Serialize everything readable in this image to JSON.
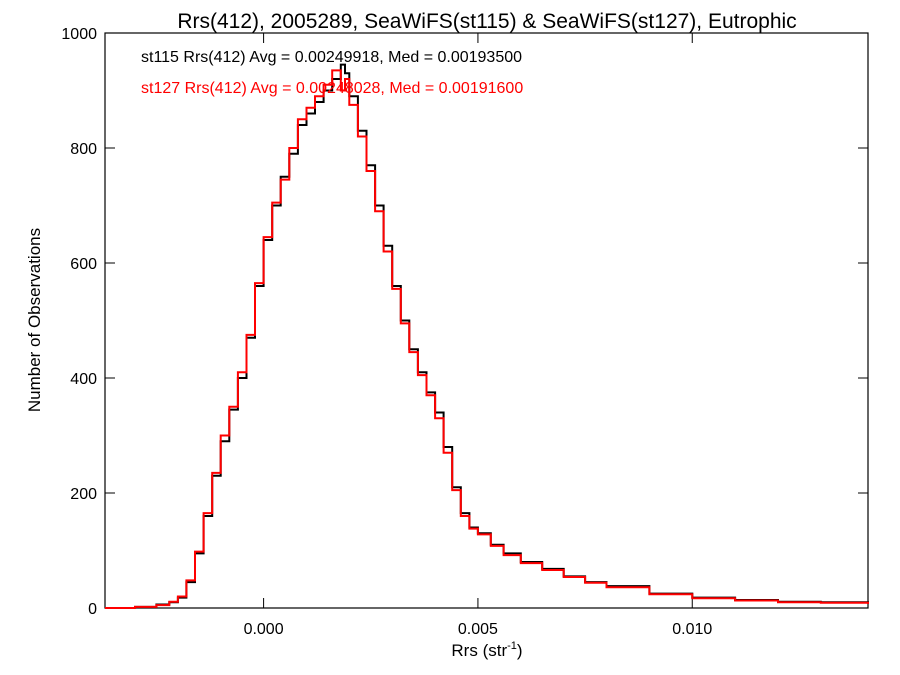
{
  "chart_data": {
    "type": "line",
    "title": "Rrs(412), 2005289, SeaWiFS(st115) & SeaWiFS(st127), Eutrophic",
    "xlabel": "Rrs (str",
    "xlabel_sup": "-1",
    "xlabel_close": ")",
    "ylabel": "Number of Observations",
    "xlim": [
      -0.0037,
      0.0141
    ],
    "ylim": [
      0,
      1000
    ],
    "x_ticks": [
      0.0,
      0.005,
      0.01
    ],
    "x_tick_labels": [
      "0.000",
      "0.005",
      "0.010"
    ],
    "y_ticks": [
      0,
      200,
      400,
      600,
      800,
      1000
    ],
    "y_tick_labels": [
      "0",
      "200",
      "400",
      "600",
      "800",
      "1000"
    ],
    "grid": false,
    "step": "histogram",
    "series": [
      {
        "name": "st115",
        "color": "#000000",
        "x": [
          -0.0037,
          -0.003,
          -0.0025,
          -0.0022,
          -0.002,
          -0.0018,
          -0.0016,
          -0.0014,
          -0.0012,
          -0.001,
          -0.0008,
          -0.0006,
          -0.0004,
          -0.0002,
          0.0,
          0.0002,
          0.0004,
          0.0006,
          0.0008,
          0.001,
          0.0012,
          0.0014,
          0.0016,
          0.0018,
          0.0019,
          0.002,
          0.0022,
          0.0024,
          0.0026,
          0.0028,
          0.003,
          0.0032,
          0.0034,
          0.0036,
          0.0038,
          0.004,
          0.0042,
          0.0044,
          0.0046,
          0.0048,
          0.005,
          0.0053,
          0.0056,
          0.006,
          0.0065,
          0.007,
          0.0075,
          0.008,
          0.009,
          0.01,
          0.011,
          0.012,
          0.013,
          0.0141
        ],
        "values": [
          0,
          2,
          6,
          10,
          18,
          45,
          95,
          160,
          230,
          290,
          345,
          400,
          470,
          560,
          640,
          700,
          750,
          790,
          840,
          860,
          880,
          900,
          920,
          945,
          930,
          890,
          830,
          770,
          700,
          630,
          560,
          500,
          450,
          410,
          375,
          340,
          280,
          210,
          165,
          140,
          130,
          110,
          95,
          80,
          68,
          55,
          45,
          38,
          25,
          18,
          14,
          11,
          10,
          8
        ]
      },
      {
        "name": "st127",
        "color": "#ff0000",
        "x": [
          -0.0037,
          -0.003,
          -0.0025,
          -0.0022,
          -0.002,
          -0.0018,
          -0.0016,
          -0.0014,
          -0.0012,
          -0.001,
          -0.0008,
          -0.0006,
          -0.0004,
          -0.0002,
          0.0,
          0.0002,
          0.0004,
          0.0006,
          0.0008,
          0.001,
          0.0012,
          0.0014,
          0.0016,
          0.0018,
          0.0019,
          0.002,
          0.0022,
          0.0024,
          0.0026,
          0.0028,
          0.003,
          0.0032,
          0.0034,
          0.0036,
          0.0038,
          0.004,
          0.0042,
          0.0044,
          0.0046,
          0.0048,
          0.005,
          0.0053,
          0.0056,
          0.006,
          0.0065,
          0.007,
          0.0075,
          0.008,
          0.009,
          0.01,
          0.011,
          0.012,
          0.013,
          0.0141
        ],
        "values": [
          0,
          2,
          5,
          11,
          20,
          48,
          98,
          165,
          235,
          300,
          350,
          410,
          475,
          565,
          645,
          705,
          745,
          800,
          850,
          870,
          890,
          910,
          935,
          900,
          920,
          875,
          820,
          760,
          690,
          620,
          555,
          495,
          445,
          405,
          370,
          330,
          270,
          205,
          160,
          138,
          128,
          108,
          92,
          78,
          66,
          54,
          44,
          36,
          24,
          17,
          13,
          10,
          9,
          7
        ]
      }
    ],
    "annotations": [
      {
        "text": "st115 Rrs(412) Avg = 0.00249918, Med = 0.00193500",
        "color": "#000000"
      },
      {
        "text": "st127 Rrs(412) Avg = 0.00248028, Med = 0.00191600",
        "color": "#ff0000"
      }
    ]
  }
}
